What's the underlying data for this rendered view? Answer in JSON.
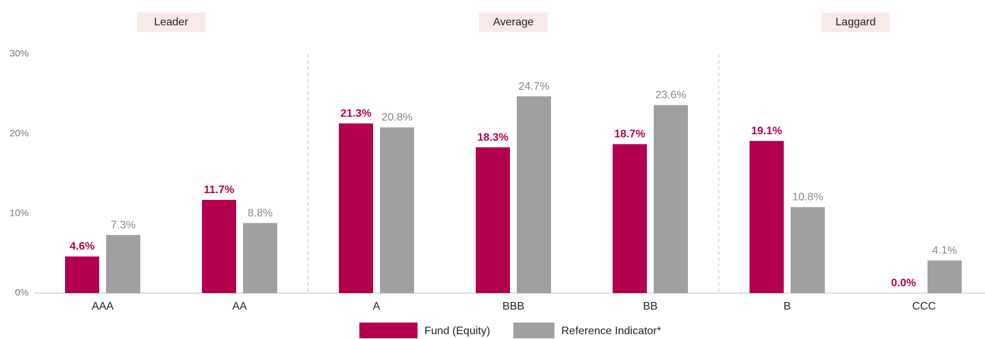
{
  "chart_data": {
    "type": "bar",
    "categories": [
      "AAA",
      "AA",
      "A",
      "BBB",
      "BB",
      "B",
      "CCC"
    ],
    "series": [
      {
        "name": "Fund (Equity)",
        "color": "#b3004e",
        "values": [
          4.6,
          11.7,
          21.3,
          18.3,
          18.7,
          19.1,
          0.0
        ],
        "value_labels": [
          "4.6%",
          "11.7%",
          "21.3%",
          "18.3%",
          "18.7%",
          "19.1%",
          "0.0%"
        ]
      },
      {
        "name": "Reference Indicator*",
        "color": "#a0a0a0",
        "values": [
          7.3,
          8.8,
          20.8,
          24.7,
          23.6,
          10.8,
          4.1
        ],
        "value_labels": [
          "7.3%",
          "8.8%",
          "20.8%",
          "24.7%",
          "23.6%",
          "10.8%",
          "4.1%"
        ]
      }
    ],
    "groups": [
      {
        "label": "Leader",
        "members": [
          "AAA",
          "AA"
        ]
      },
      {
        "label": "Average",
        "members": [
          "A",
          "BBB",
          "BB"
        ]
      },
      {
        "label": "Laggard",
        "members": [
          "B",
          "CCC"
        ]
      }
    ],
    "ylim": [
      0,
      30
    ],
    "yticks": [
      {
        "value": 0,
        "label": "0%"
      },
      {
        "value": 10,
        "label": "10%"
      },
      {
        "value": 20,
        "label": "20%"
      },
      {
        "value": 30,
        "label": "30%"
      }
    ],
    "grid": false,
    "legend": "bottom"
  }
}
